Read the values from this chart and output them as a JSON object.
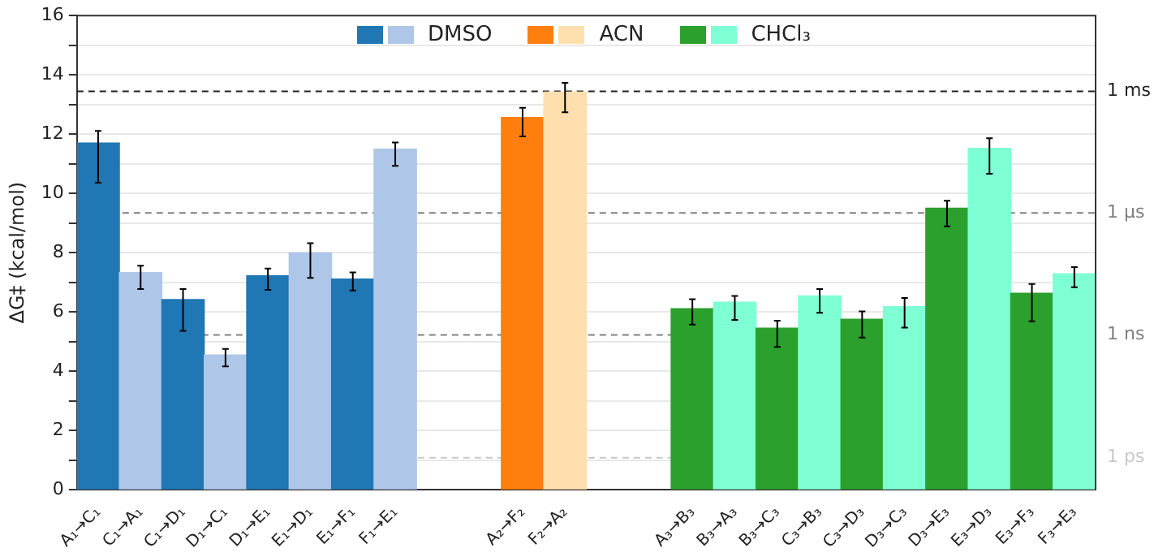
{
  "chart_data": {
    "type": "bar",
    "ylabel": "ΔG‡ (kcal/mol)",
    "categories": [
      "A₁→C₁",
      "C₁→A₁",
      "C₁→D₁",
      "D₁→C₁",
      "D₁→E₁",
      "E₁→D₁",
      "E₁→F₁",
      "F₁→E₁",
      null,
      null,
      "A₂→F₂",
      "F₂→A₂",
      null,
      null,
      "A₃→B₃",
      "B₃→A₃",
      "B₃→C₃",
      "C₃→B₃",
      "C₃→D₃",
      "D₃→C₃",
      "D₃→E₃",
      "E₃→D₃",
      "E₃→F₃",
      "F₃→E₃"
    ],
    "series": [
      {
        "name": "DMSO",
        "colors": [
          "#1f77b4",
          "#aec7e8",
          "#1f77b4",
          "#aec7e8",
          "#1f77b4",
          "#aec7e8",
          "#1f77b4",
          "#aec7e8",
          null,
          null,
          null,
          null,
          null,
          null,
          null,
          null,
          null,
          null,
          null,
          null,
          null,
          null,
          null,
          null
        ],
        "values": [
          11.7,
          7.33,
          6.42,
          4.55,
          7.22,
          7.99,
          7.11,
          11.49,
          null,
          null,
          null,
          null,
          null,
          null,
          null,
          null,
          null,
          null,
          null,
          null,
          null,
          null,
          null,
          null
        ],
        "errors": [
          [
            10.36,
            12.11
          ],
          [
            6.77,
            7.56
          ],
          [
            5.36,
            6.77
          ],
          [
            4.16,
            4.75
          ],
          [
            6.74,
            7.46
          ],
          [
            7.15,
            8.32
          ],
          [
            6.72,
            7.33
          ],
          [
            10.93,
            11.72
          ],
          null,
          null,
          null,
          null,
          null,
          null,
          null,
          null,
          null,
          null,
          null,
          null,
          null,
          null,
          null,
          null
        ]
      },
      {
        "name": "ACN",
        "colors": [
          null,
          null,
          null,
          null,
          null,
          null,
          null,
          null,
          null,
          null,
          "#ff7f0e",
          "#ffdfae",
          null,
          null,
          null,
          null,
          null,
          null,
          null,
          null,
          null,
          null,
          null,
          null
        ],
        "values": [
          null,
          null,
          null,
          null,
          null,
          null,
          null,
          null,
          null,
          null,
          12.56,
          13.42,
          null,
          null,
          null,
          null,
          null,
          null,
          null,
          null,
          null,
          null,
          null,
          null
        ],
        "errors": [
          null,
          null,
          null,
          null,
          null,
          null,
          null,
          null,
          null,
          null,
          [
            11.92,
            12.89
          ],
          [
            12.74,
            13.73
          ],
          null,
          null,
          null,
          null,
          null,
          null,
          null,
          null,
          null,
          null,
          null,
          null
        ]
      },
      {
        "name": "CHCl₃",
        "colors": [
          null,
          null,
          null,
          null,
          null,
          null,
          null,
          null,
          null,
          null,
          null,
          null,
          null,
          null,
          "#2ca02c",
          "#7fffd4",
          "#2ca02c",
          "#7fffd4",
          "#2ca02c",
          "#7fffd4",
          "#2ca02c",
          "#7fffd4",
          "#2ca02c",
          "#7fffd4"
        ],
        "values": [
          null,
          null,
          null,
          null,
          null,
          null,
          null,
          null,
          null,
          null,
          null,
          null,
          null,
          null,
          6.11,
          6.33,
          5.45,
          6.54,
          5.75,
          6.18,
          9.5,
          11.52,
          6.63,
          7.29
        ],
        "errors": [
          null,
          null,
          null,
          null,
          null,
          null,
          null,
          null,
          null,
          null,
          null,
          null,
          null,
          null,
          [
            5.57,
            6.43
          ],
          [
            5.73,
            6.54
          ],
          [
            4.82,
            5.7
          ],
          [
            5.97,
            6.77
          ],
          [
            5.13,
            6.02
          ],
          [
            5.47,
            6.47
          ],
          [
            8.89,
            9.75
          ],
          [
            10.66,
            11.86
          ],
          [
            5.68,
            6.94
          ],
          [
            6.83,
            7.51
          ]
        ]
      }
    ],
    "ylim": [
      0,
      16
    ],
    "yticks": [
      0,
      {
        "value": 1,
        "label": null
      },
      2,
      {
        "value": 3,
        "label": null
      },
      4,
      {
        "value": 5,
        "label": null
      },
      6,
      {
        "value": 7,
        "label": null
      },
      8,
      {
        "value": 9,
        "label": null
      },
      10,
      {
        "value": 11,
        "label": null
      },
      12,
      {
        "value": 13,
        "label": null
      },
      14,
      {
        "value": 15,
        "label": null
      },
      16
    ],
    "grid": "y",
    "legend": "top",
    "ref_lines": [
      {
        "axis": "y",
        "value": 13.44,
        "label": "1 ms",
        "color": "#222222",
        "line_style": "dashed"
      },
      {
        "axis": "y",
        "value": 9.34,
        "label": "1 µs",
        "color": "#808080",
        "line_style": "dashed"
      },
      {
        "axis": "y",
        "value": 5.22,
        "label": "1 ns",
        "color": "#808080",
        "line_style": "dashed"
      },
      {
        "axis": "y",
        "value": 1.08,
        "label": "1 ps",
        "color": "#c8c8c8",
        "line_style": "dashed"
      }
    ]
  }
}
